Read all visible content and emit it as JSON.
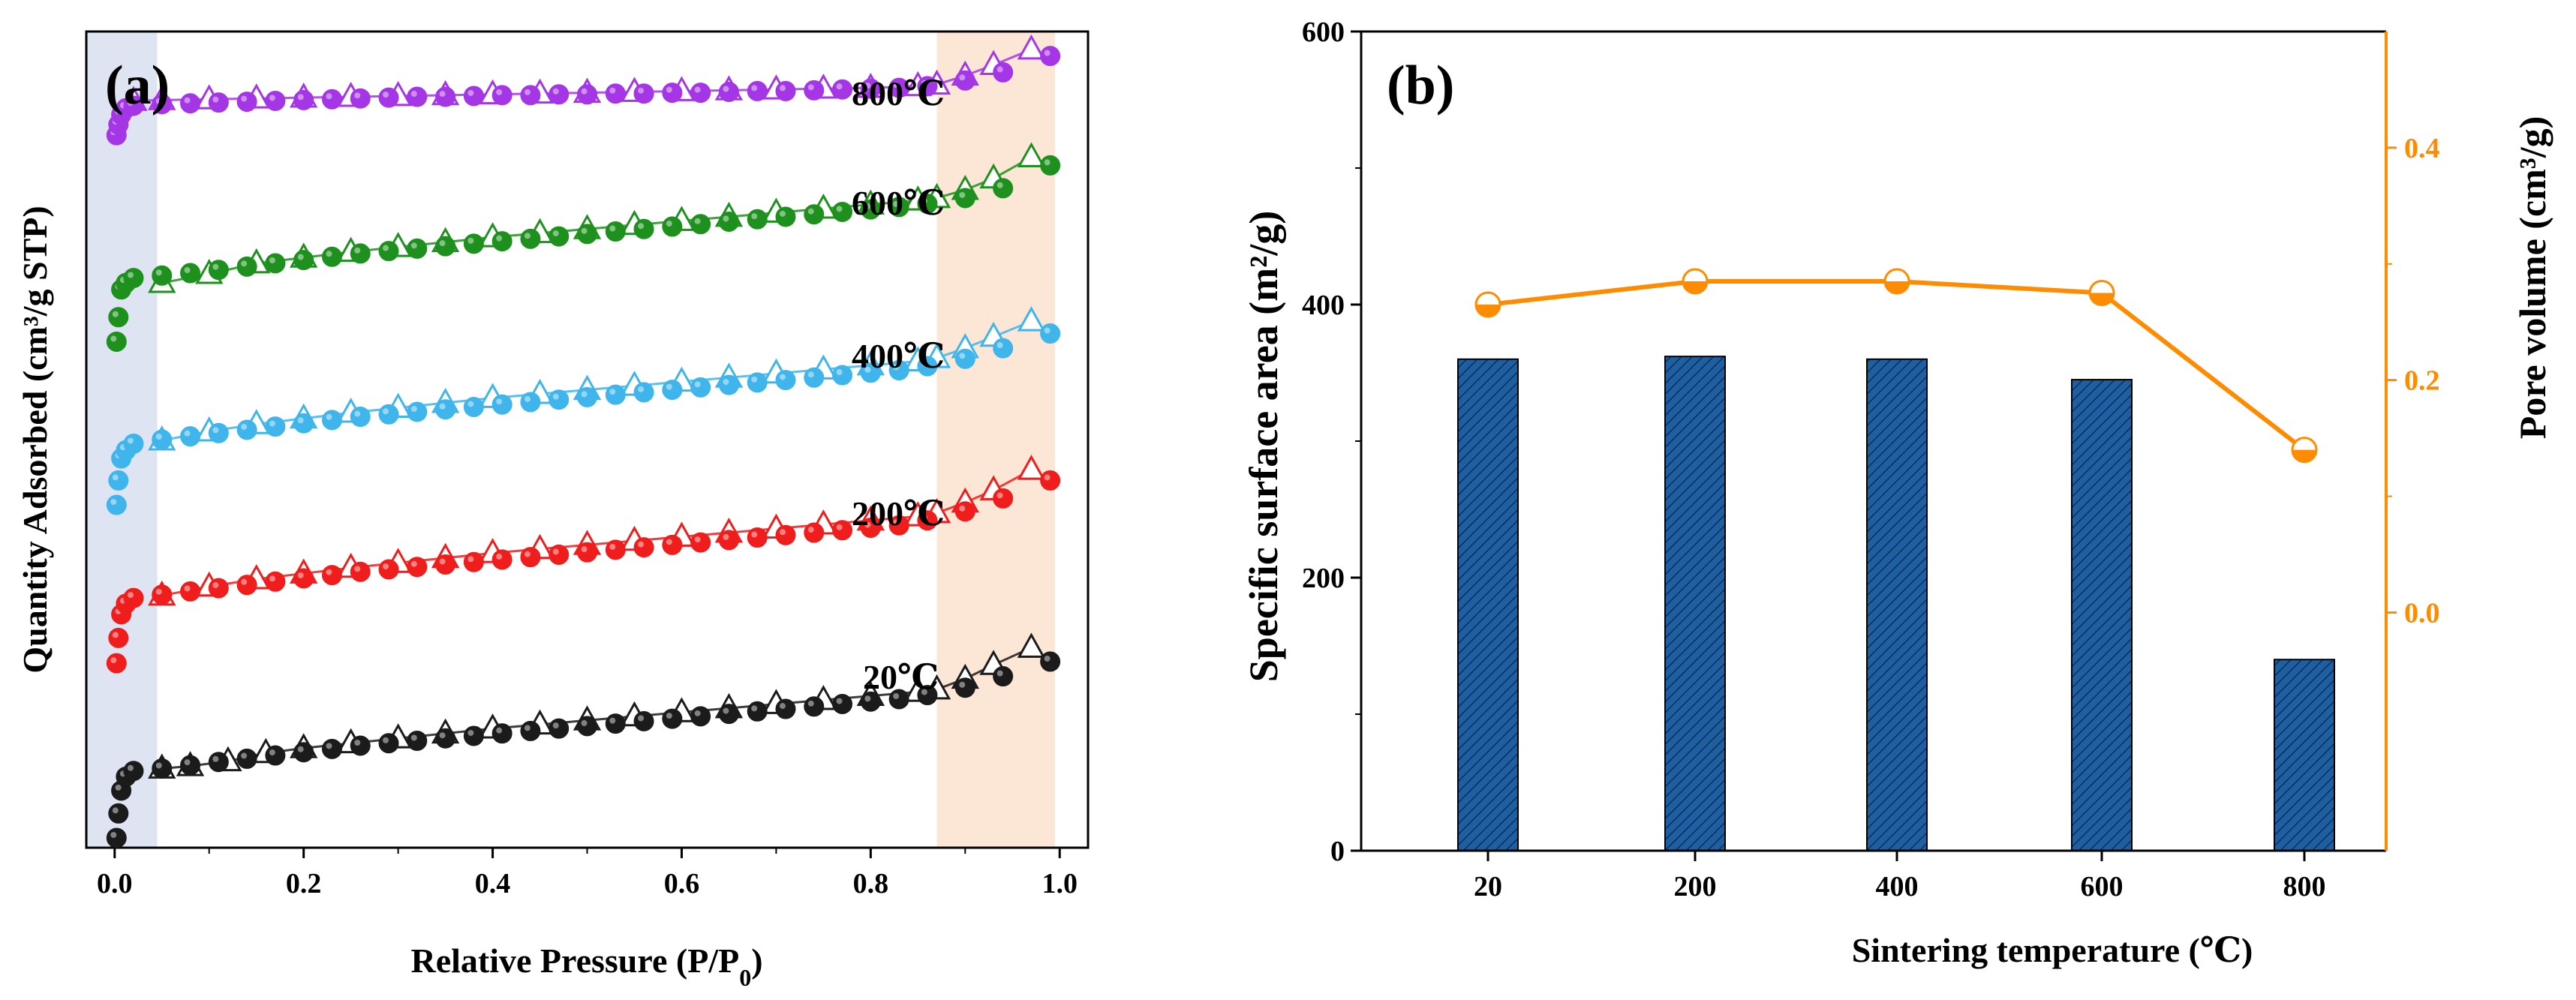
{
  "colors": {
    "c800": "#a436e6",
    "c600": "#1e901e",
    "c400": "#3fb5ec",
    "c200": "#f01d1d",
    "c20": "#1b1b1b",
    "bar": "#1d5fa0",
    "line": "#ff8c00",
    "band_low": "#dfe4f3",
    "band_high": "#fce6d6"
  },
  "chart_data": [
    {
      "panel": "(a)",
      "type": "scatter",
      "xlabel": "Relative Pressure (P/P",
      "xlabel_sub": "0",
      "xlabel_end": ")",
      "ylabel": "Quantity Adsorbed (cm³/g STP)",
      "xlim": [
        -0.03,
        1.03
      ],
      "ylim": [
        0,
        100
      ],
      "x_ticks": [
        "0.0",
        "0.2",
        "0.4",
        "0.6",
        "0.8",
        "1.0"
      ],
      "x_tick_values": [
        0,
        0.2,
        0.4,
        0.6,
        0.8,
        1.0
      ],
      "shaded_ranges": [
        [
          -0.03,
          0.045
        ],
        [
          0.87,
          0.995
        ]
      ],
      "annotation_labels": [
        "800℃",
        "600℃",
        "400℃",
        "200℃",
        "20℃"
      ],
      "series": [
        {
          "name": "800℃",
          "color_key": "c800",
          "adsorption_x": [
            0.002,
            0.004,
            0.007,
            0.012,
            0.02,
            0.05,
            0.08,
            0.11,
            0.14,
            0.17,
            0.2,
            0.23,
            0.26,
            0.29,
            0.32,
            0.35,
            0.38,
            0.41,
            0.44,
            0.47,
            0.5,
            0.53,
            0.56,
            0.59,
            0.62,
            0.65,
            0.68,
            0.71,
            0.74,
            0.77,
            0.8,
            0.83,
            0.86,
            0.9,
            0.94,
            0.99
          ],
          "adsorption_y": [
            87.3,
            88.6,
            89.8,
            90.6,
            90.9,
            91.1,
            91.2,
            91.3,
            91.4,
            91.5,
            91.6,
            91.7,
            91.8,
            91.9,
            92.0,
            92.0,
            92.1,
            92.2,
            92.2,
            92.3,
            92.3,
            92.4,
            92.4,
            92.5,
            92.5,
            92.6,
            92.7,
            92.7,
            92.8,
            92.9,
            93.0,
            93.1,
            93.3,
            94.0,
            95.0,
            97.0
          ],
          "desorption_x": [
            0.02,
            0.05,
            0.1,
            0.15,
            0.2,
            0.25,
            0.3,
            0.35,
            0.4,
            0.45,
            0.5,
            0.55,
            0.6,
            0.65,
            0.7,
            0.75,
            0.8,
            0.85,
            0.87,
            0.9,
            0.93,
            0.97
          ],
          "desorption_y": [
            91.5,
            91.6,
            91.7,
            91.8,
            91.9,
            92.0,
            92.1,
            92.2,
            92.3,
            92.4,
            92.5,
            92.6,
            92.7,
            92.8,
            92.9,
            93.0,
            93.1,
            93.3,
            93.5,
            94.6,
            95.9,
            97.8
          ]
        },
        {
          "name": "600℃",
          "color_key": "c600",
          "adsorption_x": [
            0.002,
            0.004,
            0.007,
            0.012,
            0.02,
            0.05,
            0.08,
            0.11,
            0.14,
            0.17,
            0.2,
            0.23,
            0.26,
            0.29,
            0.32,
            0.35,
            0.38,
            0.41,
            0.44,
            0.47,
            0.5,
            0.53,
            0.56,
            0.59,
            0.62,
            0.65,
            0.68,
            0.71,
            0.74,
            0.77,
            0.8,
            0.83,
            0.86,
            0.9,
            0.94,
            0.99
          ],
          "adsorption_y": [
            62.0,
            65.0,
            68.4,
            69.2,
            69.8,
            70.1,
            70.4,
            70.8,
            71.2,
            71.6,
            72.0,
            72.4,
            72.8,
            73.1,
            73.4,
            73.7,
            74.0,
            74.3,
            74.6,
            74.9,
            75.2,
            75.5,
            75.8,
            76.1,
            76.4,
            76.7,
            77.0,
            77.3,
            77.6,
            77.9,
            78.2,
            78.5,
            78.9,
            79.6,
            80.8,
            83.6
          ],
          "desorption_x": [
            0.05,
            0.1,
            0.15,
            0.2,
            0.25,
            0.3,
            0.35,
            0.4,
            0.45,
            0.5,
            0.55,
            0.6,
            0.65,
            0.7,
            0.75,
            0.8,
            0.85,
            0.87,
            0.9,
            0.93,
            0.97
          ],
          "desorption_y": [
            69.2,
            70.3,
            71.6,
            72.3,
            73.0,
            73.6,
            74.2,
            74.8,
            75.3,
            75.8,
            76.3,
            76.8,
            77.3,
            77.8,
            78.3,
            78.8,
            79.3,
            79.6,
            80.6,
            82.0,
            84.6
          ]
        },
        {
          "name": "400℃",
          "color_key": "c400",
          "adsorption_x": [
            0.002,
            0.004,
            0.007,
            0.012,
            0.02,
            0.05,
            0.08,
            0.11,
            0.14,
            0.17,
            0.2,
            0.23,
            0.26,
            0.29,
            0.32,
            0.35,
            0.38,
            0.41,
            0.44,
            0.47,
            0.5,
            0.53,
            0.56,
            0.59,
            0.62,
            0.65,
            0.68,
            0.71,
            0.74,
            0.77,
            0.8,
            0.83,
            0.86,
            0.9,
            0.94,
            0.99
          ],
          "adsorption_y": [
            42.0,
            45.0,
            47.7,
            48.7,
            49.5,
            50.0,
            50.4,
            50.8,
            51.2,
            51.6,
            52.0,
            52.4,
            52.8,
            53.1,
            53.4,
            53.7,
            54.0,
            54.3,
            54.6,
            54.9,
            55.2,
            55.5,
            55.8,
            56.1,
            56.4,
            56.7,
            57.0,
            57.3,
            57.6,
            57.9,
            58.2,
            58.5,
            59.0,
            59.9,
            61.2,
            63.0
          ],
          "desorption_x": [
            0.05,
            0.1,
            0.15,
            0.2,
            0.25,
            0.3,
            0.35,
            0.4,
            0.45,
            0.5,
            0.55,
            0.6,
            0.65,
            0.7,
            0.75,
            0.8,
            0.85,
            0.87,
            0.9,
            0.93,
            0.97
          ],
          "desorption_y": [
            49.9,
            51.0,
            51.9,
            52.6,
            53.3,
            53.9,
            54.5,
            55.1,
            55.6,
            56.1,
            56.6,
            57.1,
            57.6,
            58.1,
            58.6,
            59.1,
            59.6,
            60.0,
            61.2,
            62.6,
            64.5
          ]
        },
        {
          "name": "200℃",
          "color_key": "c200",
          "adsorption_x": [
            0.002,
            0.004,
            0.007,
            0.012,
            0.02,
            0.05,
            0.08,
            0.11,
            0.14,
            0.17,
            0.2,
            0.23,
            0.26,
            0.29,
            0.32,
            0.35,
            0.38,
            0.41,
            0.44,
            0.47,
            0.5,
            0.53,
            0.56,
            0.59,
            0.62,
            0.65,
            0.68,
            0.71,
            0.74,
            0.77,
            0.8,
            0.83,
            0.86,
            0.9,
            0.94,
            0.99
          ],
          "adsorption_y": [
            22.6,
            25.7,
            28.6,
            29.9,
            30.6,
            31.0,
            31.4,
            31.8,
            32.2,
            32.6,
            33.0,
            33.4,
            33.8,
            34.1,
            34.4,
            34.7,
            35.0,
            35.3,
            35.6,
            35.9,
            36.2,
            36.5,
            36.8,
            37.1,
            37.4,
            37.7,
            38.0,
            38.3,
            38.6,
            38.9,
            39.2,
            39.5,
            40.1,
            41.2,
            42.8,
            45.0
          ],
          "desorption_x": [
            0.05,
            0.1,
            0.15,
            0.2,
            0.25,
            0.3,
            0.35,
            0.4,
            0.45,
            0.5,
            0.55,
            0.6,
            0.65,
            0.7,
            0.75,
            0.8,
            0.85,
            0.87,
            0.9,
            0.93,
            0.97
          ],
          "desorption_y": [
            30.9,
            32.0,
            32.9,
            33.6,
            34.3,
            34.9,
            35.5,
            36.1,
            36.6,
            37.1,
            37.6,
            38.1,
            38.6,
            39.1,
            39.6,
            40.1,
            40.6,
            41.0,
            42.3,
            43.8,
            46.3
          ]
        },
        {
          "name": "20℃",
          "color_key": "c20",
          "adsorption_x": [
            0.002,
            0.004,
            0.007,
            0.012,
            0.02,
            0.05,
            0.08,
            0.11,
            0.14,
            0.17,
            0.2,
            0.23,
            0.26,
            0.29,
            0.32,
            0.35,
            0.38,
            0.41,
            0.44,
            0.47,
            0.5,
            0.53,
            0.56,
            0.59,
            0.62,
            0.65,
            0.68,
            0.71,
            0.74,
            0.77,
            0.8,
            0.83,
            0.86,
            0.9,
            0.94,
            0.99
          ],
          "adsorption_y": [
            1.2,
            4.2,
            7.0,
            8.7,
            9.4,
            9.7,
            10.1,
            10.5,
            10.9,
            11.3,
            11.7,
            12.1,
            12.5,
            12.8,
            13.1,
            13.4,
            13.7,
            14.0,
            14.3,
            14.6,
            14.9,
            15.2,
            15.5,
            15.8,
            16.1,
            16.4,
            16.7,
            17.0,
            17.3,
            17.6,
            17.9,
            18.2,
            18.7,
            19.6,
            21.0,
            22.8
          ],
          "desorption_x": [
            0.05,
            0.08,
            0.12,
            0.16,
            0.2,
            0.25,
            0.3,
            0.35,
            0.4,
            0.45,
            0.5,
            0.55,
            0.6,
            0.65,
            0.7,
            0.75,
            0.8,
            0.85,
            0.87,
            0.9,
            0.93,
            0.97
          ],
          "desorption_y": [
            9.7,
            10.0,
            10.6,
            11.6,
            12.2,
            12.8,
            13.4,
            14.0,
            14.6,
            15.1,
            15.6,
            16.1,
            16.6,
            17.1,
            17.6,
            18.1,
            18.6,
            19.1,
            19.4,
            20.7,
            22.4,
            24.5
          ]
        }
      ]
    },
    {
      "panel": "(b)",
      "type": "bar",
      "xlabel": "Sintering temperature (℃)",
      "ylabel": "Specific surface area (m²/g)",
      "ylabel_right": "Pore volume (cm³/g)",
      "categories": [
        "20",
        "200",
        "400",
        "600",
        "800"
      ],
      "ylim": [
        0,
        600
      ],
      "y_ticks": [
        "0",
        "200",
        "400",
        "600"
      ],
      "y_tick_values": [
        0,
        200,
        400,
        600
      ],
      "values": [
        360,
        362,
        360,
        345,
        140
      ],
      "ylim_right": [
        -0.205,
        0.5
      ],
      "y_ticks_right": [
        "0.0",
        "0.2",
        "0.4"
      ],
      "y_tick_values_right": [
        0.0,
        0.2,
        0.4
      ],
      "line_values": [
        0.265,
        0.285,
        0.285,
        0.275,
        0.14
      ]
    }
  ]
}
